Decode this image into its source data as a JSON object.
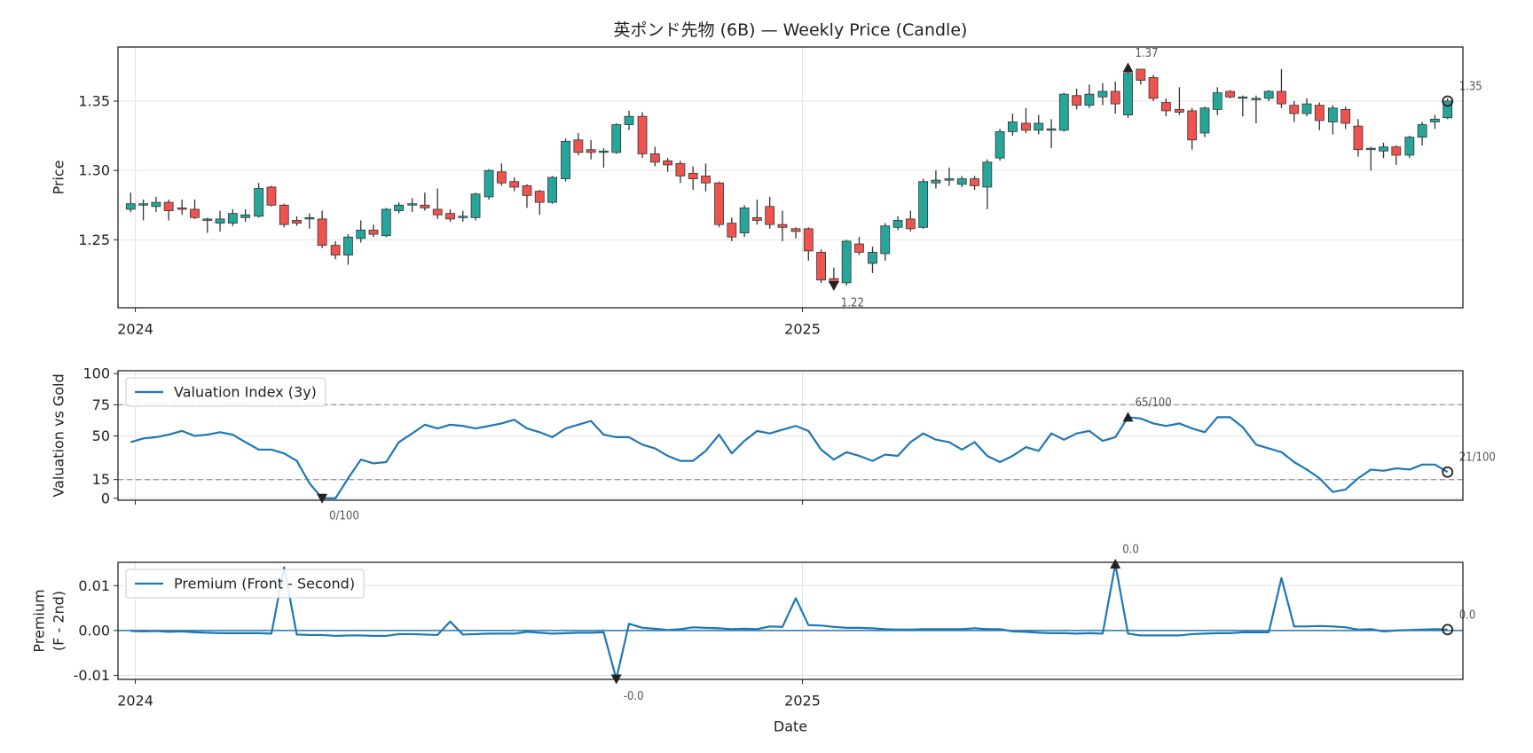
{
  "chart_data": [
    {
      "type": "candlestick",
      "title": "英ポンド先物 (6B) — Weekly Price (Candle)",
      "ylabel": "Price",
      "x": [
        2023.993,
        2024.012,
        2024.031,
        2024.05,
        2024.07,
        2024.089,
        2024.108,
        2024.127,
        2024.146,
        2024.165,
        2024.185,
        2024.204,
        2024.223,
        2024.242,
        2024.261,
        2024.28,
        2024.3,
        2024.319,
        2024.338,
        2024.357,
        2024.376,
        2024.395,
        2024.415,
        2024.434,
        2024.453,
        2024.472,
        2024.491,
        2024.51,
        2024.53,
        2024.549,
        2024.568,
        2024.587,
        2024.606,
        2024.625,
        2024.645,
        2024.664,
        2024.683,
        2024.702,
        2024.721,
        2024.74,
        2024.76,
        2024.779,
        2024.798,
        2024.817,
        2024.836,
        2024.855,
        2024.875,
        2024.894,
        2024.913,
        2024.932,
        2024.951,
        2024.97,
        2024.99,
        2025.009,
        2025.028,
        2025.047,
        2025.066,
        2025.085,
        2025.105,
        2025.124,
        2025.143,
        2025.162,
        2025.181,
        2025.2,
        2025.22,
        2025.239,
        2025.258,
        2025.277,
        2025.296,
        2025.315,
        2025.335,
        2025.354,
        2025.373,
        2025.392,
        2025.411,
        2025.43,
        2025.45,
        2025.469,
        2025.488,
        2025.507,
        2025.526,
        2025.545,
        2025.565,
        2025.584,
        2025.603,
        2025.622,
        2025.641,
        2025.66,
        2025.68,
        2025.699,
        2025.718,
        2025.737,
        2025.756,
        2025.775,
        2025.795,
        2025.814,
        2025.833,
        2025.852,
        2025.871,
        2025.89,
        2025.91,
        2025.929,
        2025.948,
        2025.967
      ],
      "open": [
        1.272,
        1.275,
        1.274,
        1.277,
        1.273,
        1.272,
        1.264,
        1.262,
        1.262,
        1.266,
        1.267,
        1.288,
        1.275,
        1.264,
        1.265,
        1.265,
        1.246,
        1.239,
        1.251,
        1.257,
        1.253,
        1.271,
        1.275,
        1.275,
        1.272,
        1.269,
        1.266,
        1.266,
        1.281,
        1.299,
        1.292,
        1.289,
        1.285,
        1.277,
        1.294,
        1.322,
        1.315,
        1.313,
        1.313,
        1.333,
        1.339,
        1.312,
        1.307,
        1.305,
        1.298,
        1.296,
        1.291,
        1.262,
        1.255,
        1.266,
        1.274,
        1.261,
        1.258,
        1.258,
        1.241,
        1.222,
        1.219,
        1.247,
        1.233,
        1.24,
        1.259,
        1.265,
        1.259,
        1.291,
        1.293,
        1.29,
        1.294,
        1.288,
        1.309,
        1.328,
        1.334,
        1.329,
        1.329,
        1.329,
        1.354,
        1.347,
        1.353,
        1.357,
        1.34,
        1.373,
        1.367,
        1.349,
        1.344,
        1.343,
        1.327,
        1.344,
        1.357,
        1.352,
        1.351,
        1.352,
        1.357,
        1.347,
        1.341,
        1.347,
        1.335,
        1.344,
        1.332,
        1.315,
        1.314,
        1.317,
        1.311,
        1.324,
        1.335,
        1.338
      ],
      "high": [
        1.284,
        1.279,
        1.281,
        1.279,
        1.279,
        1.279,
        1.266,
        1.271,
        1.272,
        1.272,
        1.291,
        1.289,
        1.276,
        1.267,
        1.269,
        1.271,
        1.249,
        1.254,
        1.264,
        1.261,
        1.273,
        1.277,
        1.28,
        1.284,
        1.287,
        1.272,
        1.271,
        1.284,
        1.301,
        1.305,
        1.295,
        1.29,
        1.286,
        1.296,
        1.323,
        1.327,
        1.322,
        1.316,
        1.334,
        1.343,
        1.342,
        1.317,
        1.309,
        1.307,
        1.303,
        1.305,
        1.292,
        1.266,
        1.275,
        1.279,
        1.281,
        1.271,
        1.259,
        1.259,
        1.243,
        1.23,
        1.25,
        1.252,
        1.245,
        1.262,
        1.267,
        1.271,
        1.294,
        1.3,
        1.302,
        1.296,
        1.296,
        1.308,
        1.33,
        1.341,
        1.345,
        1.34,
        1.337,
        1.356,
        1.359,
        1.362,
        1.363,
        1.364,
        1.374,
        1.373,
        1.369,
        1.352,
        1.36,
        1.345,
        1.346,
        1.36,
        1.358,
        1.354,
        1.354,
        1.358,
        1.373,
        1.35,
        1.352,
        1.349,
        1.347,
        1.346,
        1.337,
        1.317,
        1.32,
        1.318,
        1.325,
        1.335,
        1.34,
        1.352
      ],
      "low": [
        1.27,
        1.264,
        1.27,
        1.264,
        1.268,
        1.265,
        1.255,
        1.256,
        1.26,
        1.263,
        1.266,
        1.274,
        1.259,
        1.26,
        1.258,
        1.244,
        1.236,
        1.232,
        1.248,
        1.252,
        1.252,
        1.269,
        1.27,
        1.271,
        1.265,
        1.263,
        1.263,
        1.264,
        1.279,
        1.289,
        1.285,
        1.273,
        1.268,
        1.276,
        1.292,
        1.311,
        1.308,
        1.302,
        1.312,
        1.329,
        1.309,
        1.303,
        1.299,
        1.291,
        1.286,
        1.285,
        1.259,
        1.249,
        1.252,
        1.261,
        1.258,
        1.249,
        1.251,
        1.235,
        1.219,
        1.217,
        1.217,
        1.239,
        1.226,
        1.235,
        1.257,
        1.256,
        1.258,
        1.287,
        1.289,
        1.288,
        1.286,
        1.272,
        1.307,
        1.325,
        1.327,
        1.326,
        1.316,
        1.328,
        1.344,
        1.345,
        1.347,
        1.341,
        1.338,
        1.362,
        1.35,
        1.339,
        1.34,
        1.315,
        1.324,
        1.34,
        1.352,
        1.339,
        1.334,
        1.35,
        1.345,
        1.335,
        1.339,
        1.329,
        1.326,
        1.33,
        1.31,
        1.3,
        1.309,
        1.304,
        1.309,
        1.318,
        1.33,
        1.337
      ],
      "close": [
        1.276,
        1.276,
        1.277,
        1.271,
        1.272,
        1.266,
        1.265,
        1.265,
        1.269,
        1.268,
        1.287,
        1.275,
        1.261,
        1.262,
        1.266,
        1.246,
        1.239,
        1.252,
        1.257,
        1.254,
        1.272,
        1.275,
        1.276,
        1.273,
        1.268,
        1.265,
        1.267,
        1.283,
        1.3,
        1.291,
        1.288,
        1.282,
        1.277,
        1.295,
        1.321,
        1.313,
        1.313,
        1.314,
        1.333,
        1.339,
        1.312,
        1.306,
        1.304,
        1.296,
        1.294,
        1.291,
        1.261,
        1.252,
        1.273,
        1.264,
        1.261,
        1.259,
        1.256,
        1.242,
        1.221,
        1.219,
        1.249,
        1.241,
        1.241,
        1.26,
        1.264,
        1.258,
        1.292,
        1.293,
        1.294,
        1.294,
        1.289,
        1.306,
        1.328,
        1.335,
        1.329,
        1.334,
        1.33,
        1.355,
        1.347,
        1.355,
        1.357,
        1.348,
        1.37,
        1.365,
        1.352,
        1.343,
        1.342,
        1.322,
        1.345,
        1.356,
        1.353,
        1.353,
        1.352,
        1.357,
        1.348,
        1.341,
        1.348,
        1.336,
        1.345,
        1.334,
        1.315,
        1.316,
        1.317,
        1.311,
        1.324,
        1.333,
        1.337,
        1.35
      ],
      "up_color": "#26a69a",
      "down_color": "#ef5350",
      "wick_color": "#333333",
      "xlim": [
        2023.974,
        2025.99
      ],
      "xticks": [
        2024,
        2025
      ],
      "ylim": [
        1.201,
        1.389
      ],
      "yticks": [
        1.25,
        {
          "value": 1.3,
          "label": "1.30"
        },
        1.35
      ],
      "grid": true,
      "annotations": [
        {
          "x": 2025.488,
          "y": 1.374,
          "label": "1.37",
          "marker": "triangle-up"
        },
        {
          "x": 2025.047,
          "y": 1.217,
          "label": "1.22",
          "marker": "triangle-down"
        },
        {
          "x": 2025.967,
          "y": 1.35,
          "label": "1.35",
          "marker": "circle"
        }
      ]
    },
    {
      "type": "line",
      "ylabel": "Valuation vs Gold",
      "x": [
        2023.993,
        2024.012,
        2024.031,
        2024.05,
        2024.07,
        2024.089,
        2024.108,
        2024.127,
        2024.146,
        2024.165,
        2024.185,
        2024.204,
        2024.223,
        2024.242,
        2024.261,
        2024.28,
        2024.3,
        2024.319,
        2024.338,
        2024.357,
        2024.376,
        2024.395,
        2024.415,
        2024.434,
        2024.453,
        2024.472,
        2024.491,
        2024.51,
        2024.53,
        2024.549,
        2024.568,
        2024.587,
        2024.606,
        2024.625,
        2024.645,
        2024.664,
        2024.683,
        2024.702,
        2024.721,
        2024.74,
        2024.76,
        2024.779,
        2024.798,
        2024.817,
        2024.836,
        2024.855,
        2024.875,
        2024.894,
        2024.913,
        2024.932,
        2024.951,
        2024.97,
        2024.99,
        2025.009,
        2025.028,
        2025.047,
        2025.066,
        2025.085,
        2025.105,
        2025.124,
        2025.143,
        2025.162,
        2025.181,
        2025.2,
        2025.22,
        2025.239,
        2025.258,
        2025.277,
        2025.296,
        2025.315,
        2025.335,
        2025.354,
        2025.373,
        2025.392,
        2025.411,
        2025.43,
        2025.45,
        2025.469,
        2025.488,
        2025.507,
        2025.526,
        2025.545,
        2025.565,
        2025.584,
        2025.603,
        2025.622,
        2025.641,
        2025.66,
        2025.68,
        2025.699,
        2025.718,
        2025.737,
        2025.756,
        2025.775,
        2025.795,
        2025.814,
        2025.833,
        2025.852,
        2025.871,
        2025.89,
        2025.91,
        2025.929,
        2025.948,
        2025.967
      ],
      "series": [
        {
          "name": "Valuation Index (3y)",
          "color": "#1f77b4",
          "values": [
            45,
            48,
            49,
            51,
            54,
            50,
            51,
            53,
            51,
            45,
            39,
            39,
            36,
            30,
            12,
            0,
            0,
            16,
            31,
            28,
            29,
            45,
            52,
            59,
            56,
            59,
            58,
            56,
            58,
            60,
            63,
            56,
            53,
            49,
            56,
            59,
            62,
            51,
            49,
            49,
            43,
            40,
            34,
            30,
            30,
            38,
            51,
            36,
            46,
            54,
            52,
            55,
            58,
            54,
            39,
            31,
            37,
            34,
            30,
            35,
            34,
            45,
            52,
            47,
            45,
            39,
            45,
            34,
            29,
            34,
            41,
            38,
            52,
            47,
            52,
            54,
            46,
            49,
            65,
            64,
            60,
            58,
            60,
            56,
            53,
            65,
            65,
            57,
            43,
            40,
            37,
            29,
            23,
            16,
            5,
            7,
            16,
            23,
            22,
            24,
            23,
            27,
            27,
            21
          ]
        }
      ],
      "xlim": [
        2023.974,
        2025.99
      ],
      "xticks": [
        2024,
        2025
      ],
      "xtick_labels": false,
      "ylim": [
        -1.6,
        102.3
      ],
      "yticks": [
        0,
        15,
        50,
        75,
        100
      ],
      "grid": true,
      "legend": "upper left",
      "hlines": [
        {
          "y": 75,
          "color": "#999999",
          "style": "dashed"
        },
        {
          "y": 15,
          "color": "#999999",
          "style": "dashed"
        }
      ],
      "annotations": [
        {
          "x": 2025.488,
          "y": 65,
          "label": "65/100",
          "marker": "triangle-up"
        },
        {
          "x": 2024.28,
          "y": 0,
          "label": "0/100",
          "marker": "triangle-down"
        },
        {
          "x": 2025.967,
          "y": 21,
          "label": "21/100",
          "marker": "circle"
        }
      ]
    },
    {
      "type": "line",
      "ylabel": [
        "Premium",
        "(F - 2nd)"
      ],
      "xlabel": "Date",
      "x": [
        2023.993,
        2024.012,
        2024.031,
        2024.05,
        2024.07,
        2024.089,
        2024.108,
        2024.127,
        2024.146,
        2024.165,
        2024.185,
        2024.204,
        2024.223,
        2024.242,
        2024.261,
        2024.28,
        2024.3,
        2024.319,
        2024.338,
        2024.357,
        2024.376,
        2024.395,
        2024.415,
        2024.434,
        2024.453,
        2024.472,
        2024.491,
        2024.51,
        2024.53,
        2024.549,
        2024.568,
        2024.587,
        2024.606,
        2024.625,
        2024.645,
        2024.664,
        2024.683,
        2024.702,
        2024.721,
        2024.74,
        2024.76,
        2024.779,
        2024.798,
        2024.817,
        2024.836,
        2024.855,
        2024.875,
        2024.894,
        2024.913,
        2024.932,
        2024.951,
        2024.97,
        2024.99,
        2025.009,
        2025.028,
        2025.047,
        2025.066,
        2025.085,
        2025.105,
        2025.124,
        2025.143,
        2025.162,
        2025.181,
        2025.2,
        2025.22,
        2025.239,
        2025.258,
        2025.277,
        2025.296,
        2025.315,
        2025.335,
        2025.354,
        2025.373,
        2025.392,
        2025.411,
        2025.43,
        2025.45,
        2025.469,
        2025.488,
        2025.507,
        2025.526,
        2025.545,
        2025.565,
        2025.584,
        2025.603,
        2025.622,
        2025.641,
        2025.66,
        2025.68,
        2025.699,
        2025.718,
        2025.737,
        2025.756,
        2025.775,
        2025.795,
        2025.814,
        2025.833,
        2025.852,
        2025.871,
        2025.89,
        2025.91,
        2025.929,
        2025.948,
        2025.967
      ],
      "series": [
        {
          "name": "Premium (Front - Second)",
          "color": "#1f77b4",
          "values": [
            -0.0001,
            -0.0002,
            -0.0001,
            -0.0003,
            -0.0002,
            -0.0004,
            -0.0005,
            -0.0006,
            -0.0006,
            -0.0006,
            -0.0006,
            -0.0007,
            0.0141,
            -0.0009,
            -0.001,
            -0.001,
            -0.0012,
            -0.0011,
            -0.0011,
            -0.0012,
            -0.0012,
            -0.0008,
            -0.0008,
            -0.0009,
            -0.001,
            0.002,
            -0.0009,
            -0.0008,
            -0.0007,
            -0.0007,
            -0.0007,
            -0.0003,
            -0.0005,
            -0.0007,
            -0.0006,
            -0.0005,
            -0.0005,
            -0.0004,
            -0.0108,
            0.0015,
            0.0006,
            0.0004,
            0.0001,
            0.0003,
            0.0007,
            0.0006,
            0.0005,
            0.0003,
            0.0004,
            0.0003,
            0.0009,
            0.0008,
            0.0072,
            0.0012,
            0.0011,
            0.0008,
            0.0006,
            0.0006,
            0.0005,
            0.0003,
            0.0002,
            0.0002,
            0.0003,
            0.0003,
            0.0003,
            0.0003,
            0.0005,
            0.0003,
            0.0003,
            -0.0002,
            -0.0003,
            -0.0005,
            -0.0006,
            -0.0006,
            -0.0007,
            -0.0006,
            -0.0007,
            0.0148,
            -0.0007,
            -0.0011,
            -0.0011,
            -0.0011,
            -0.0011,
            -0.0008,
            -0.0007,
            -0.0006,
            -0.0006,
            -0.0004,
            -0.0004,
            -0.0004,
            0.0117,
            0.0009,
            0.0009,
            0.001,
            0.0009,
            0.0007,
            0.0002,
            0.0003,
            -0.0002,
            0,
            0.0001,
            0.0002,
            0.0003,
            0.0002
          ]
        }
      ],
      "xlim": [
        2023.974,
        2025.99
      ],
      "xticks": [
        2024,
        2025
      ],
      "ylim": [
        -0.0109,
        0.0152
      ],
      "yticks": [
        -0.01,
        {
          "value": 0,
          "label": "0.00"
        },
        0.01
      ],
      "grid": true,
      "legend": "upper left",
      "hlines": [
        {
          "y": 0,
          "color": "#1f77b4",
          "style": "solid"
        }
      ],
      "annotations": [
        {
          "x": 2025.469,
          "y": 0.0148,
          "label": "0.0",
          "marker": "triangle-up"
        },
        {
          "x": 2024.721,
          "y": -0.0108,
          "label": "-0.0",
          "marker": "triangle-down"
        },
        {
          "x": 2025.967,
          "y": 0.0002,
          "label": "0.0",
          "marker": "circle"
        }
      ]
    }
  ]
}
